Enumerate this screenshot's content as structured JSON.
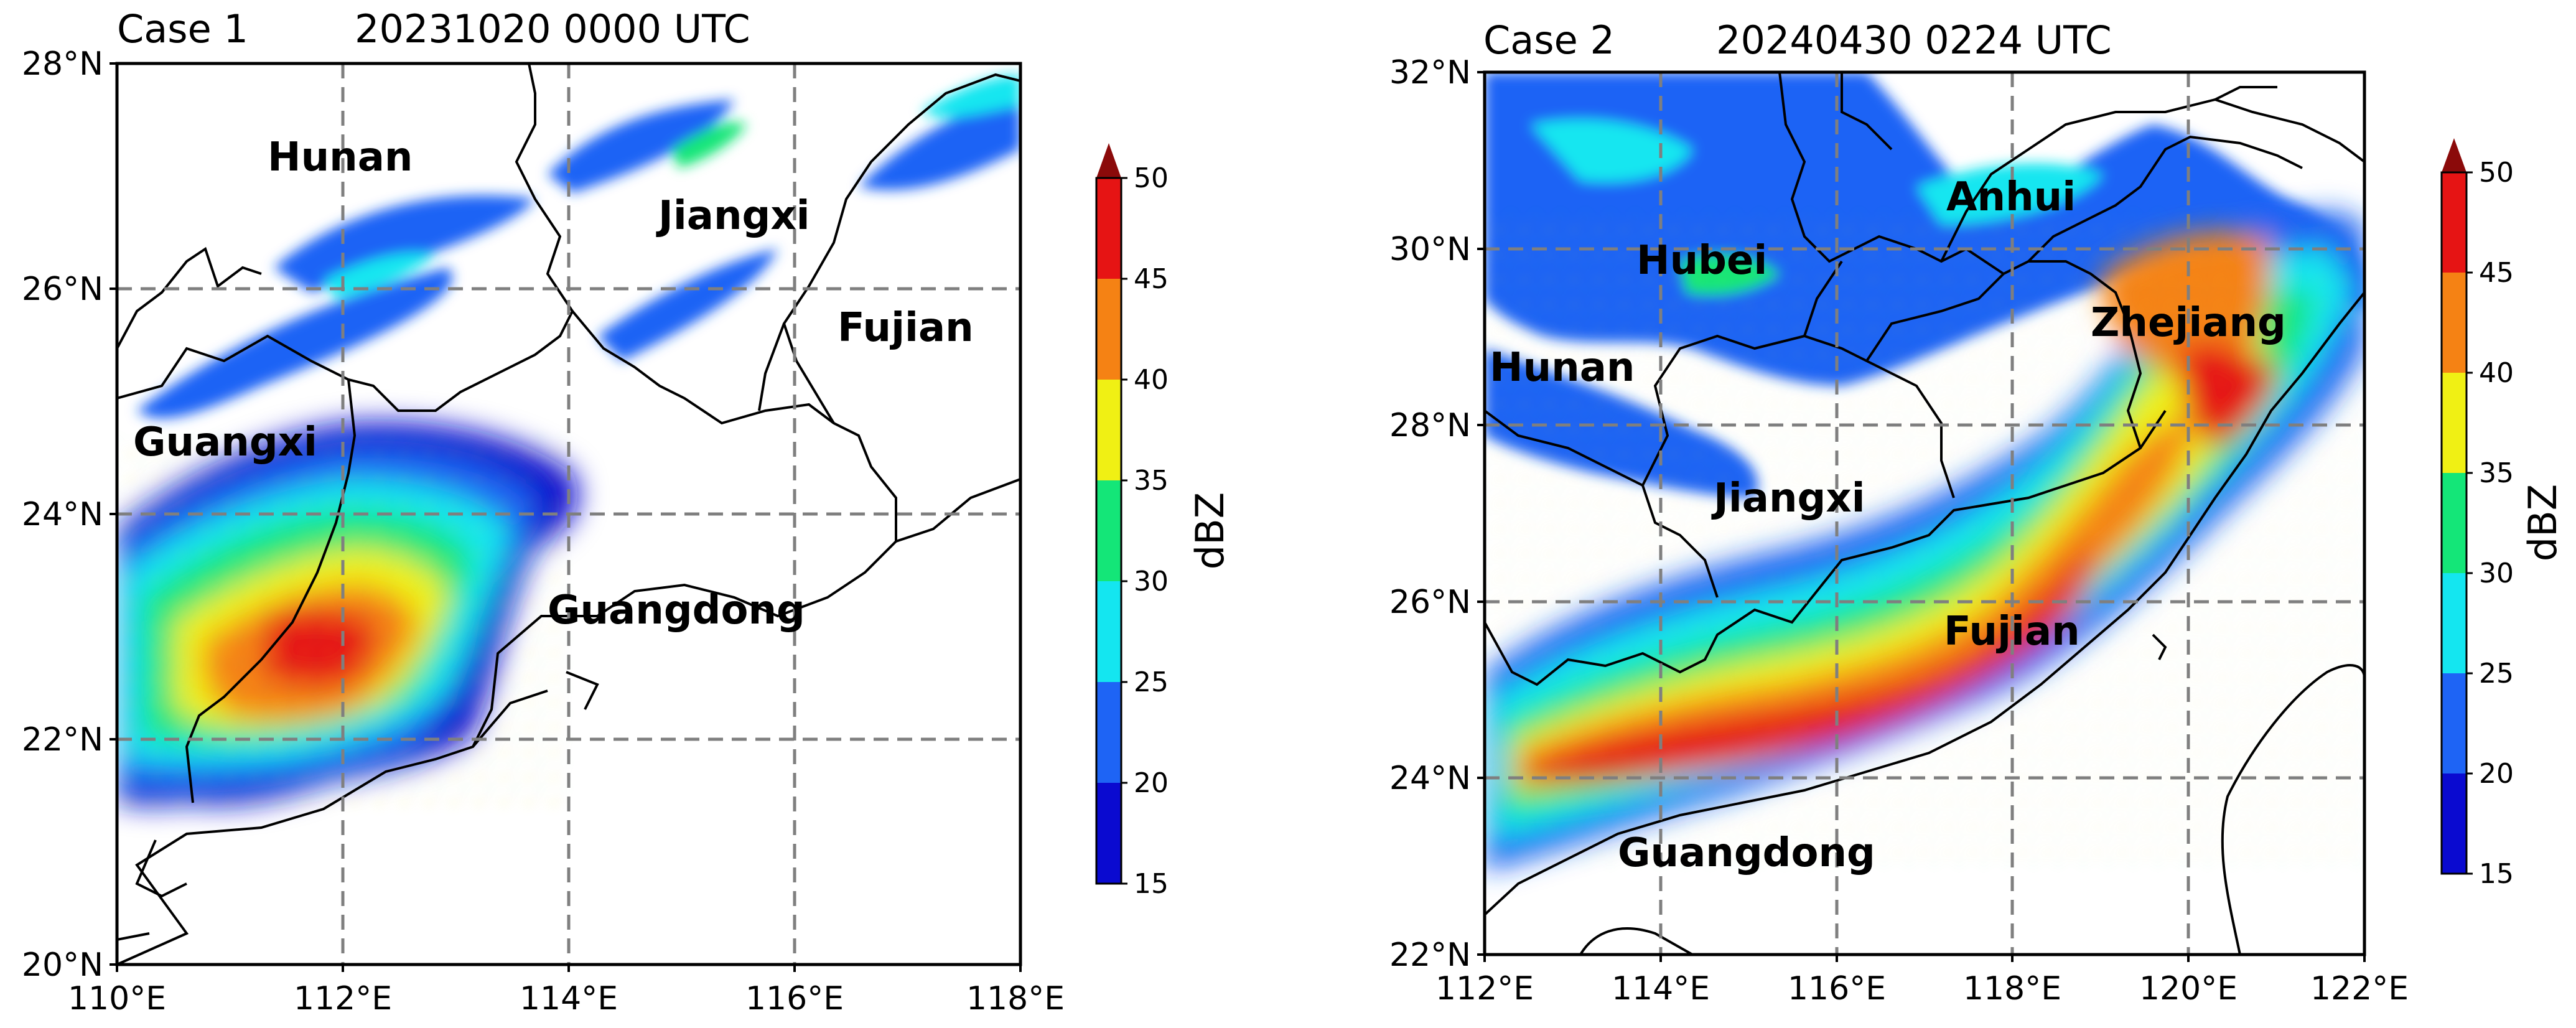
{
  "colorbar": {
    "label": "dBZ",
    "ticks": [
      "15",
      "20",
      "25",
      "30",
      "35",
      "40",
      "45",
      "50"
    ],
    "colors": [
      "#0a0ad0",
      "#1e64f5",
      "#14e6f0",
      "#14e678",
      "#f0f014",
      "#f58214",
      "#e61414"
    ],
    "extend_color": "#8b0a0a"
  },
  "panels": [
    {
      "case_label": "Case 1",
      "time_label": "20231020 0000 UTC",
      "provinces": [
        "Hunan",
        "Jiangxi",
        "Fujian",
        "Guangxi",
        "Guangdong"
      ],
      "lat_labels": [
        "28°N",
        "26°N",
        "24°N",
        "22°N",
        "20°N"
      ],
      "lon_labels": [
        "110°E",
        "112°E",
        "114°E",
        "116°E",
        "118°E"
      ]
    },
    {
      "case_label": "Case 2",
      "time_label": "20240430 0224 UTC",
      "provinces": [
        "Anhui",
        "Hubei",
        "Zhejiang",
        "Hunan",
        "Jiangxi",
        "Fujian",
        "Guangdong"
      ],
      "lat_labels": [
        "32°N",
        "30°N",
        "28°N",
        "26°N",
        "24°N",
        "22°N"
      ],
      "lon_labels": [
        "112°E",
        "114°E",
        "116°E",
        "118°E",
        "120°E",
        "122°E"
      ]
    }
  ]
}
